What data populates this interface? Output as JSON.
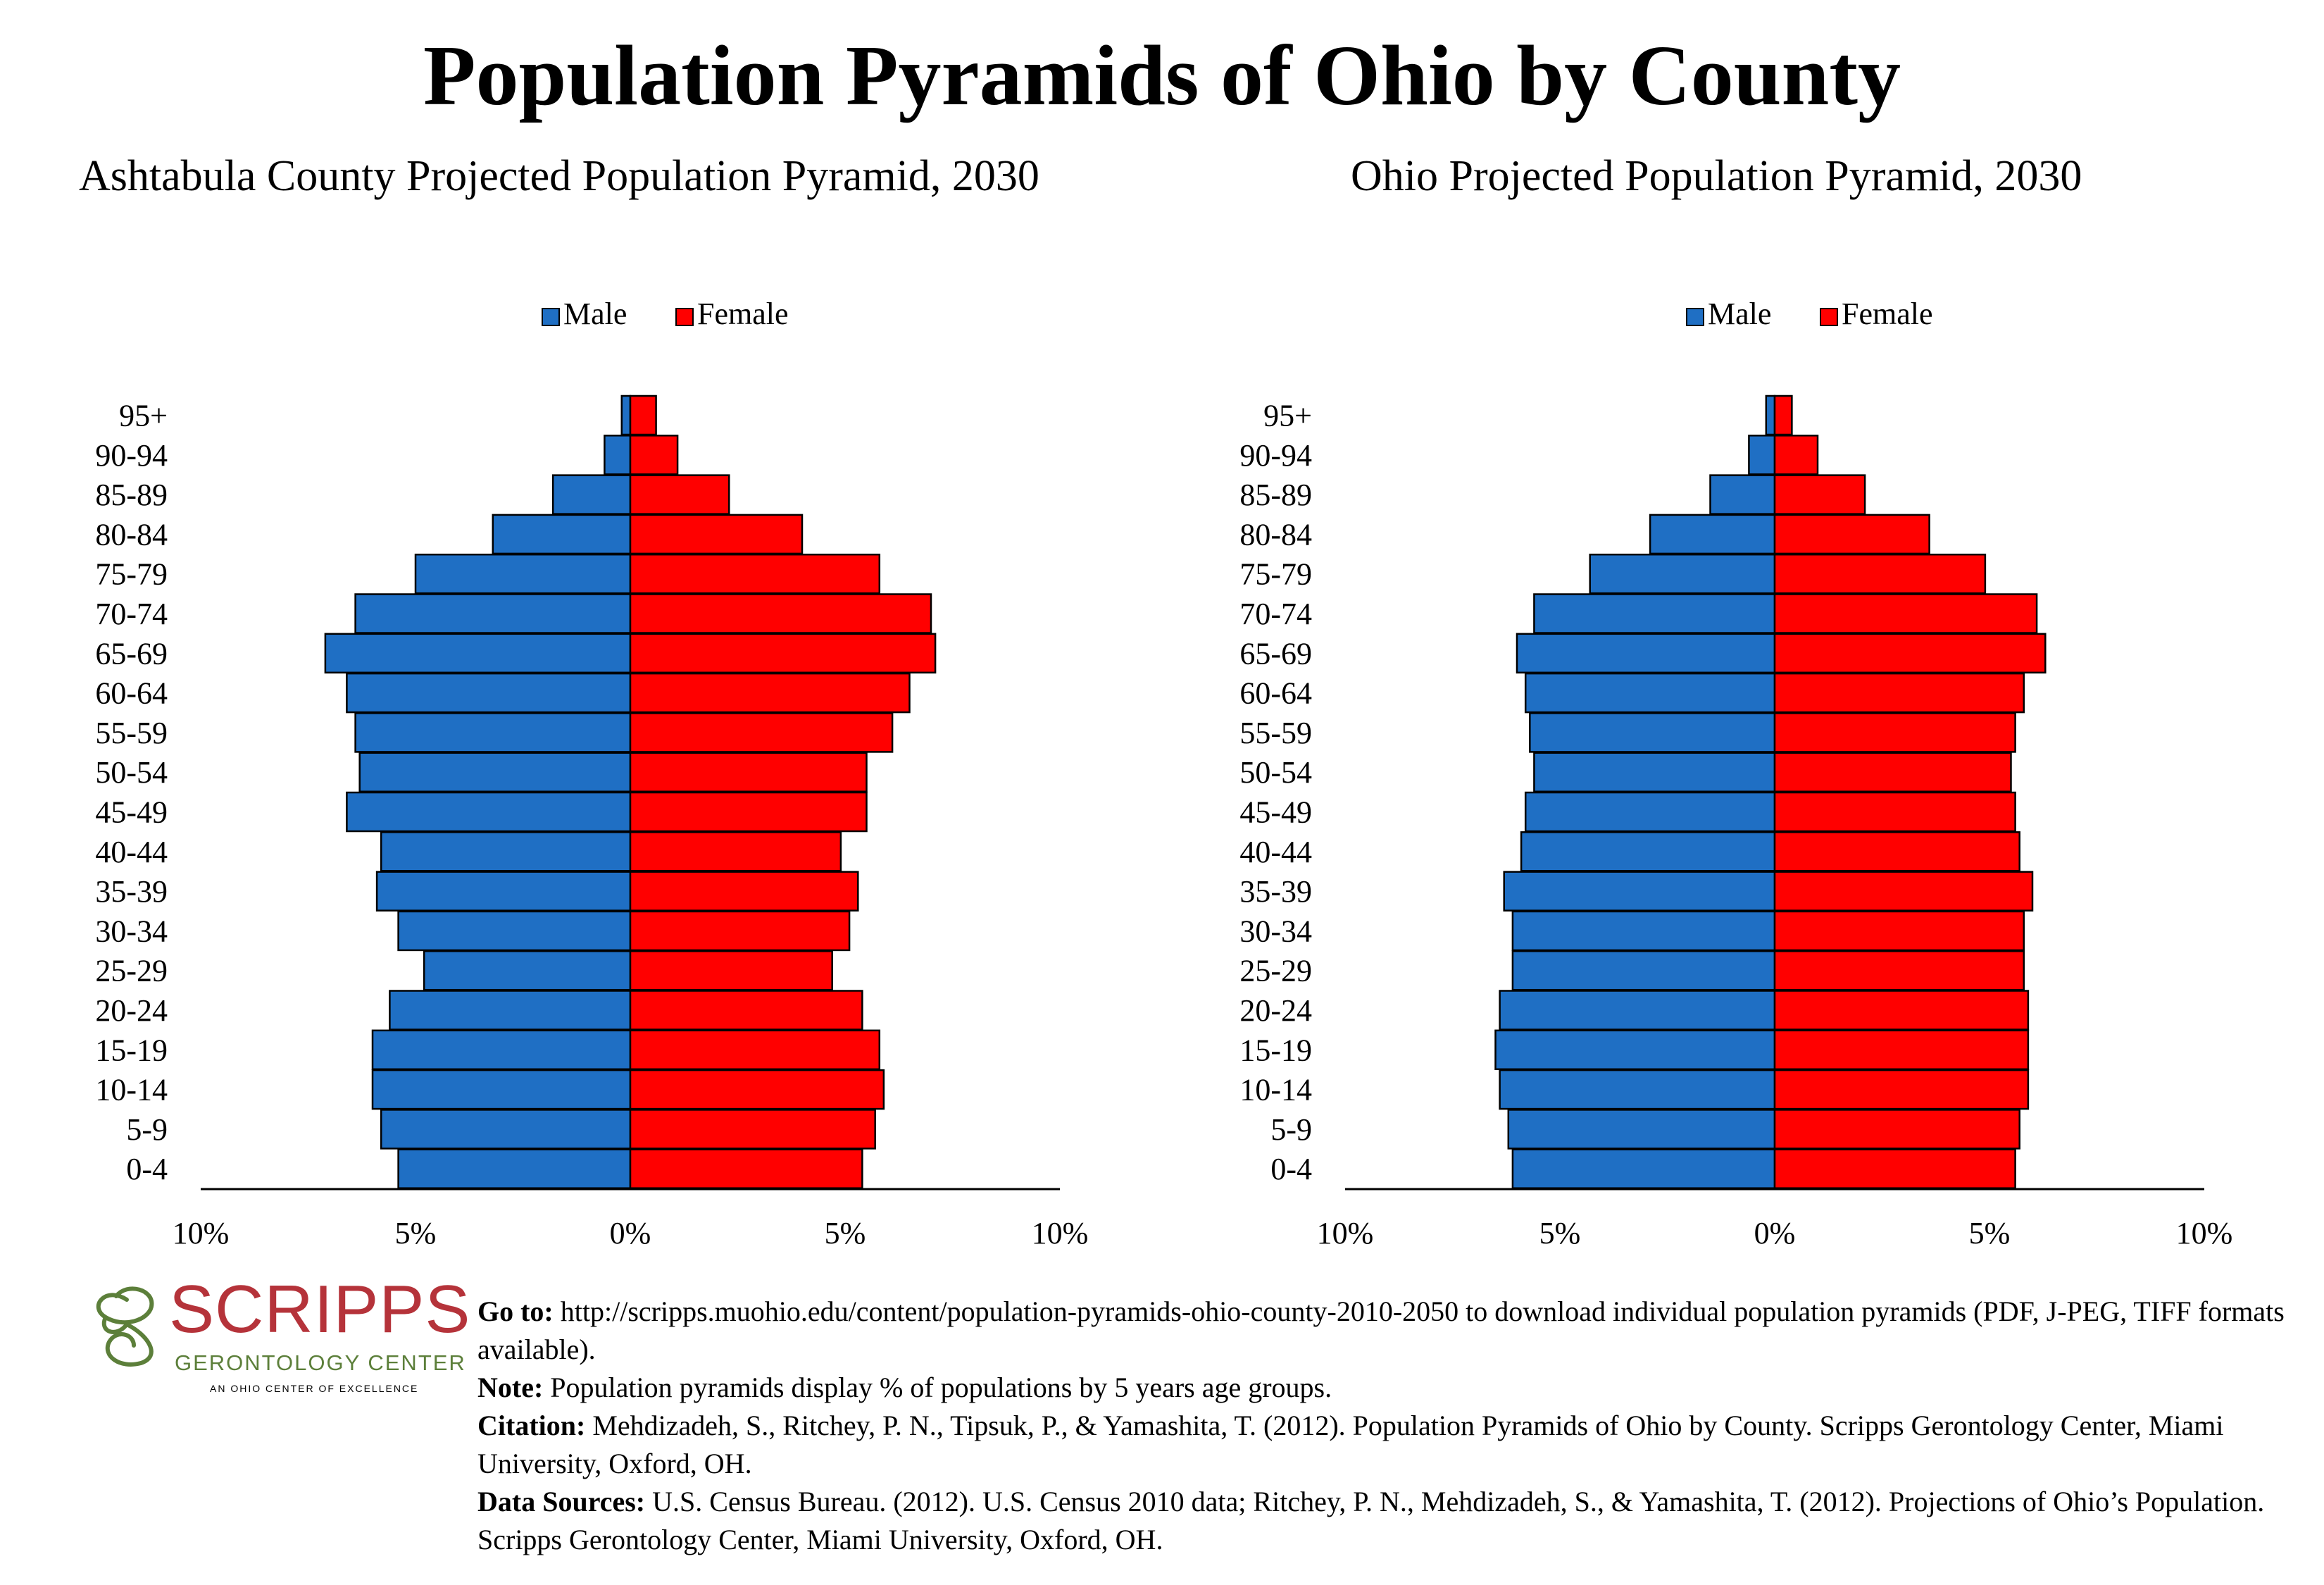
{
  "title": "Population Pyramids of Ohio by County",
  "colors": {
    "male": "#1f6fc4",
    "female": "#ff0000",
    "logo_red": "#b5333a",
    "logo_green": "#5c7f3a"
  },
  "legend": {
    "male": "Male",
    "female": "Female"
  },
  "chart_data": [
    {
      "type": "bar",
      "orientation": "horizontal-pyramid",
      "title": "Ashtabula County Projected Population Pyramid, 2030",
      "categories": [
        "95+",
        "90-94",
        "85-89",
        "80-84",
        "75-79",
        "70-74",
        "65-69",
        "60-64",
        "55-59",
        "50-54",
        "45-49",
        "40-44",
        "35-39",
        "30-34",
        "25-29",
        "20-24",
        "15-19",
        "10-14",
        "5-9",
        "0-4"
      ],
      "series": [
        {
          "name": "Male",
          "values": [
            0.2,
            0.6,
            1.8,
            3.2,
            5.0,
            6.4,
            7.1,
            6.6,
            6.4,
            6.3,
            6.6,
            5.8,
            5.9,
            5.4,
            4.8,
            5.6,
            6.0,
            6.0,
            5.8,
            5.4
          ]
        },
        {
          "name": "Female",
          "values": [
            0.6,
            1.1,
            2.3,
            4.0,
            5.8,
            7.0,
            7.1,
            6.5,
            6.1,
            5.5,
            5.5,
            4.9,
            5.3,
            5.1,
            4.7,
            5.4,
            5.8,
            5.9,
            5.7,
            5.4
          ]
        }
      ],
      "xlim": [
        -10,
        10
      ],
      "x_ticks": [
        "10%",
        "5%",
        "0%",
        "5%",
        "10%"
      ],
      "legend_position": "top-center",
      "grid": false
    },
    {
      "type": "bar",
      "orientation": "horizontal-pyramid",
      "title": "Ohio Projected Population Pyramid, 2030",
      "categories": [
        "95+",
        "90-94",
        "85-89",
        "80-84",
        "75-79",
        "70-74",
        "65-69",
        "60-64",
        "55-59",
        "50-54",
        "45-49",
        "40-44",
        "35-39",
        "30-34",
        "25-29",
        "20-24",
        "15-19",
        "10-14",
        "5-9",
        "0-4"
      ],
      "series": [
        {
          "name": "Male",
          "values": [
            0.2,
            0.6,
            1.5,
            2.9,
            4.3,
            5.6,
            6.0,
            5.8,
            5.7,
            5.6,
            5.8,
            5.9,
            6.3,
            6.1,
            6.1,
            6.4,
            6.5,
            6.4,
            6.2,
            6.1
          ]
        },
        {
          "name": "Female",
          "values": [
            0.4,
            1.0,
            2.1,
            3.6,
            4.9,
            6.1,
            6.3,
            5.8,
            5.6,
            5.5,
            5.6,
            5.7,
            6.0,
            5.8,
            5.8,
            5.9,
            5.9,
            5.9,
            5.7,
            5.6
          ]
        }
      ],
      "xlim": [
        -10,
        10
      ],
      "x_ticks": [
        "10%",
        "5%",
        "0%",
        "5%",
        "10%"
      ],
      "legend_position": "top-center",
      "grid": false
    }
  ],
  "logo": {
    "name": "SCRIPPS",
    "subtitle": "GERONTOLOGY CENTER",
    "tagline": "AN OHIO CENTER OF EXCELLENCE"
  },
  "notes": {
    "goto_label": "Go to:",
    "goto_text": " http://scripps.muohio.edu/content/population-pyramids-ohio-county-2010-2050 to download individual population pyramids (PDF, J-PEG, TIFF formats available).",
    "note_label": "Note:",
    "note_text": " Population pyramids display % of populations by 5 years age groups.",
    "citation_label": "Citation:",
    "citation_text": " Mehdizadeh, S., Ritchey, P. N., Tipsuk, P., & Yamashita, T. (2012). Population Pyramids of Ohio by County. Scripps Gerontology Center, Miami University, Oxford, OH.",
    "sources_label": "Data Sources:",
    "sources_text": " U.S. Census Bureau. (2012). U.S. Census 2010 data; Ritchey, P. N., Mehdizadeh, S., & Yamashita, T. (2012). Projections of Ohio’s Population. Scripps Gerontology Center, Miami University, Oxford, OH."
  }
}
